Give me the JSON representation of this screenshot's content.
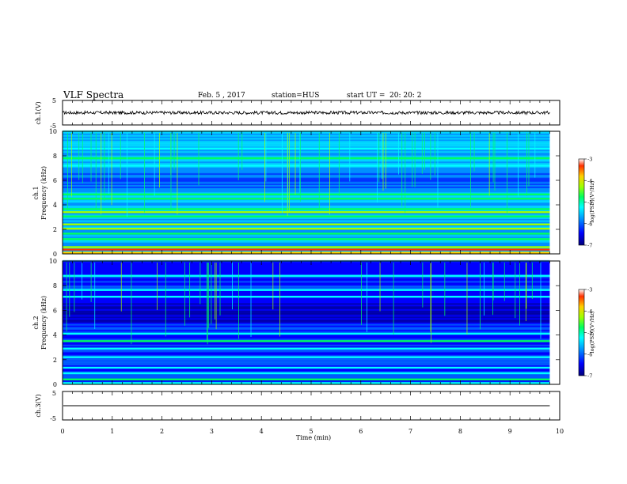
{
  "header": {
    "title": "VLF Spectra",
    "date": "Feb. 5 , 2017",
    "station": "station=HUS",
    "start_ut_label": "start UT =",
    "start_ut_value": "20: 20: 2"
  },
  "chart_data": {
    "type": "heatmap",
    "x_axis": {
      "label": "Time (min)",
      "range": [
        0,
        10
      ],
      "ticks": [
        "0",
        "1",
        "2",
        "3",
        "4",
        "5",
        "6",
        "7",
        "8",
        "9",
        "10"
      ]
    },
    "data_end_min": 9.8,
    "panels": [
      {
        "id": "ch1_waveform",
        "type": "line",
        "ylabel": "ch.1(V)",
        "ylim": [
          -5,
          5
        ],
        "yticks": [
          "5",
          "-5"
        ],
        "signal": "noise band around 0 V (approx -0.4 to +0.4 V)"
      },
      {
        "id": "ch1_spectrogram",
        "type": "heatmap",
        "ylabel_line1": "ch.1",
        "ylabel_line2": "Frequency (kHz)",
        "ylim": [
          0,
          10
        ],
        "yticks": [
          "0",
          "2",
          "4",
          "6",
          "8",
          "10"
        ],
        "colorbar": {
          "label": "log(PSD)(V²/Hz)",
          "range": [
            -7,
            -3
          ],
          "ticks": [
            "-3",
            "-4",
            "-5",
            "-6",
            "-7"
          ],
          "colors": [
            "#00007a",
            "#0000ff",
            "#0090ff",
            "#00ffff",
            "#00ff60",
            "#a0ff00",
            "#ffd000",
            "#ff3000",
            "#ffffff"
          ]
        },
        "bands_khz": [
          {
            "f": 0.1,
            "level": -4.2
          },
          {
            "f": 0.35,
            "level": -3.6
          },
          {
            "f": 0.55,
            "level": -4.5
          },
          {
            "f": 1.2,
            "level": -5.0
          },
          {
            "f": 1.65,
            "level": -4.8
          },
          {
            "f": 2.05,
            "level": -4.7
          },
          {
            "f": 2.4,
            "level": -4.6
          },
          {
            "f": 3.05,
            "level": -5.0
          },
          {
            "f": 3.4,
            "level": -4.7
          },
          {
            "f": 3.65,
            "level": -5.0
          },
          {
            "f": 4.5,
            "level": -5.0
          },
          {
            "f": 4.85,
            "level": -5.2
          },
          {
            "f": 7.2,
            "level": -5.3
          },
          {
            "f": 7.8,
            "level": -5.2
          },
          {
            "f": 8.6,
            "level": -5.5
          }
        ]
      },
      {
        "id": "ch2_spectrogram",
        "type": "heatmap",
        "ylabel_line1": "ch.2",
        "ylabel_line2": "Frequency (kHz)",
        "ylim": [
          0,
          10
        ],
        "yticks": [
          "0",
          "2",
          "4",
          "6",
          "8",
          "10"
        ],
        "colorbar": {
          "label": "log(PSD)(V²/Hz)",
          "range": [
            -7,
            -3
          ],
          "ticks": [
            "-3",
            "-4",
            "-5",
            "-6",
            "-7"
          ],
          "colors": [
            "#00007a",
            "#0000ff",
            "#0090ff",
            "#00ffff",
            "#00ff60",
            "#a0ff00",
            "#ffd000",
            "#ff3000",
            "#ffffff"
          ]
        },
        "bands_khz": [
          {
            "f": 0.1,
            "level": -5.6
          },
          {
            "f": 0.4,
            "level": -5.0
          },
          {
            "f": 0.9,
            "level": -5.4
          },
          {
            "f": 1.35,
            "level": -5.5
          },
          {
            "f": 2.2,
            "level": -5.3
          },
          {
            "f": 2.9,
            "level": -5.6
          },
          {
            "f": 3.5,
            "level": -4.9
          },
          {
            "f": 4.1,
            "level": -5.4
          },
          {
            "f": 7.1,
            "level": -5.6
          },
          {
            "f": 7.65,
            "level": -5.3
          },
          {
            "f": 8.8,
            "level": -5.6
          }
        ]
      },
      {
        "id": "ch3_waveform",
        "type": "line",
        "ylabel": "ch.3(V)",
        "ylim": [
          -5,
          5
        ],
        "yticks": [
          "5",
          "-5"
        ],
        "signal": "flat line at 0 V"
      }
    ]
  }
}
